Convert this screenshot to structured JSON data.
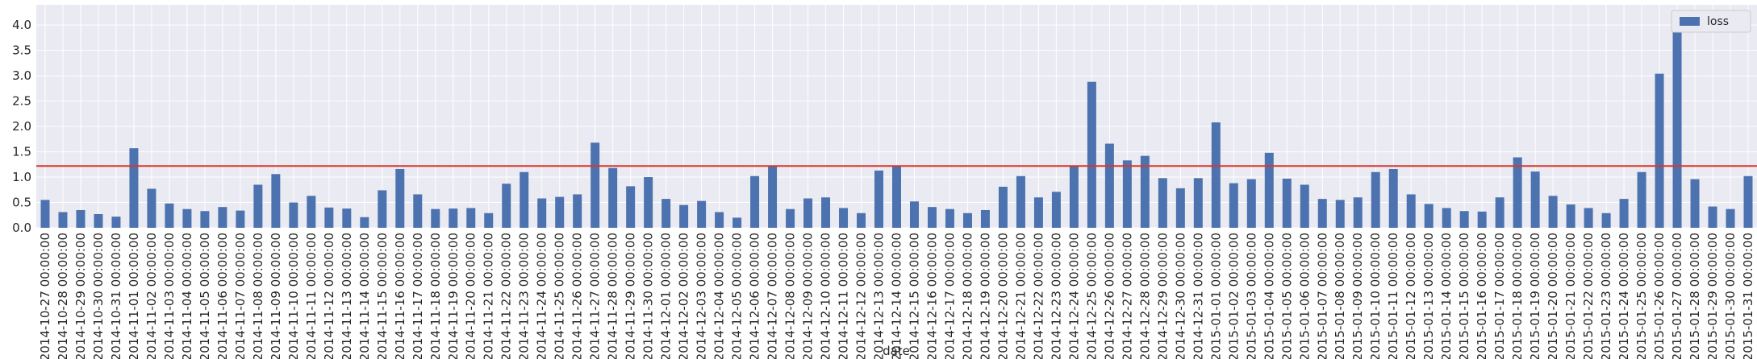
{
  "chart_data": {
    "type": "bar",
    "title": "",
    "xlabel": "date",
    "ylabel": "",
    "ylim": [
      0,
      4.4
    ],
    "yticks": [
      0.0,
      0.5,
      1.0,
      1.5,
      2.0,
      2.5,
      3.0,
      3.5,
      4.0
    ],
    "ytick_labels": [
      "0.0",
      "0.5",
      "1.0",
      "1.5",
      "2.0",
      "2.5",
      "3.0",
      "3.5",
      "4.0"
    ],
    "grid": true,
    "legend_position": "top-right",
    "reference_line": {
      "y": 1.22,
      "color": "#d9372b"
    },
    "series": [
      {
        "name": "loss",
        "color": "#4c72b0",
        "values": [
          0.55,
          0.31,
          0.35,
          0.27,
          0.22,
          1.57,
          0.77,
          0.48,
          0.37,
          0.33,
          0.41,
          0.34,
          0.85,
          1.06,
          0.5,
          0.63,
          0.4,
          0.38,
          0.21,
          0.74,
          1.16,
          0.66,
          0.37,
          0.38,
          0.39,
          0.29,
          0.87,
          1.1,
          0.58,
          0.61,
          0.66,
          1.68,
          1.18,
          0.82,
          1.0,
          0.57,
          0.45,
          0.53,
          0.31,
          0.2,
          1.02,
          1.22,
          0.37,
          0.58,
          0.6,
          0.39,
          0.29,
          1.13,
          1.21,
          0.52,
          0.41,
          0.37,
          0.29,
          0.35,
          0.81,
          1.02,
          0.6,
          0.71,
          1.22,
          2.88,
          1.66,
          1.33,
          1.42,
          0.98,
          0.78,
          0.98,
          2.08,
          0.88,
          0.96,
          1.48,
          0.97,
          0.85,
          0.57,
          0.55,
          0.6,
          1.1,
          1.16,
          0.66,
          0.47,
          0.39,
          0.33,
          0.32,
          0.6,
          1.39,
          1.11,
          0.63,
          0.46,
          0.39,
          0.29,
          0.57,
          1.1,
          3.04,
          4.15,
          0.96,
          0.42,
          0.37,
          1.02
        ]
      }
    ],
    "categories": [
      "2014-10-27 00:00:00",
      "2014-10-28 00:00:00",
      "2014-10-29 00:00:00",
      "2014-10-30 00:00:00",
      "2014-10-31 00:00:00",
      "2014-11-01 00:00:00",
      "2014-11-02 00:00:00",
      "2014-11-03 00:00:00",
      "2014-11-04 00:00:00",
      "2014-11-05 00:00:00",
      "2014-11-06 00:00:00",
      "2014-11-07 00:00:00",
      "2014-11-08 00:00:00",
      "2014-11-09 00:00:00",
      "2014-11-10 00:00:00",
      "2014-11-11 00:00:00",
      "2014-11-12 00:00:00",
      "2014-11-13 00:00:00",
      "2014-11-14 00:00:00",
      "2014-11-15 00:00:00",
      "2014-11-16 00:00:00",
      "2014-11-17 00:00:00",
      "2014-11-18 00:00:00",
      "2014-11-19 00:00:00",
      "2014-11-20 00:00:00",
      "2014-11-21 00:00:00",
      "2014-11-22 00:00:00",
      "2014-11-23 00:00:00",
      "2014-11-24 00:00:00",
      "2014-11-25 00:00:00",
      "2014-11-26 00:00:00",
      "2014-11-27 00:00:00",
      "2014-11-28 00:00:00",
      "2014-11-29 00:00:00",
      "2014-11-30 00:00:00",
      "2014-12-01 00:00:00",
      "2014-12-02 00:00:00",
      "2014-12-03 00:00:00",
      "2014-12-04 00:00:00",
      "2014-12-05 00:00:00",
      "2014-12-06 00:00:00",
      "2014-12-07 00:00:00",
      "2014-12-08 00:00:00",
      "2014-12-09 00:00:00",
      "2014-12-10 00:00:00",
      "2014-12-11 00:00:00",
      "2014-12-12 00:00:00",
      "2014-12-13 00:00:00",
      "2014-12-14 00:00:00",
      "2014-12-15 00:00:00",
      "2014-12-16 00:00:00",
      "2014-12-17 00:00:00",
      "2014-12-18 00:00:00",
      "2014-12-19 00:00:00",
      "2014-12-20 00:00:00",
      "2014-12-21 00:00:00",
      "2014-12-22 00:00:00",
      "2014-12-23 00:00:00",
      "2014-12-24 00:00:00",
      "2014-12-25 00:00:00",
      "2014-12-26 00:00:00",
      "2014-12-27 00:00:00",
      "2014-12-28 00:00:00",
      "2014-12-29 00:00:00",
      "2014-12-30 00:00:00",
      "2014-12-31 00:00:00",
      "2015-01-01 00:00:00",
      "2015-01-02 00:00:00",
      "2015-01-03 00:00:00",
      "2015-01-04 00:00:00",
      "2015-01-05 00:00:00",
      "2015-01-06 00:00:00",
      "2015-01-07 00:00:00",
      "2015-01-08 00:00:00",
      "2015-01-09 00:00:00",
      "2015-01-10 00:00:00",
      "2015-01-11 00:00:00",
      "2015-01-12 00:00:00",
      "2015-01-13 00:00:00",
      "2015-01-14 00:00:00",
      "2015-01-15 00:00:00",
      "2015-01-16 00:00:00",
      "2015-01-17 00:00:00",
      "2015-01-18 00:00:00",
      "2015-01-19 00:00:00",
      "2015-01-20 00:00:00",
      "2015-01-21 00:00:00",
      "2015-01-22 00:00:00",
      "2015-01-23 00:00:00",
      "2015-01-24 00:00:00",
      "2015-01-25 00:00:00",
      "2015-01-26 00:00:00",
      "2015-01-27 00:00:00",
      "2015-01-28 00:00:00",
      "2015-01-29 00:00:00",
      "2015-01-30 00:00:00",
      "2015-01-31 00:00:00"
    ]
  }
}
